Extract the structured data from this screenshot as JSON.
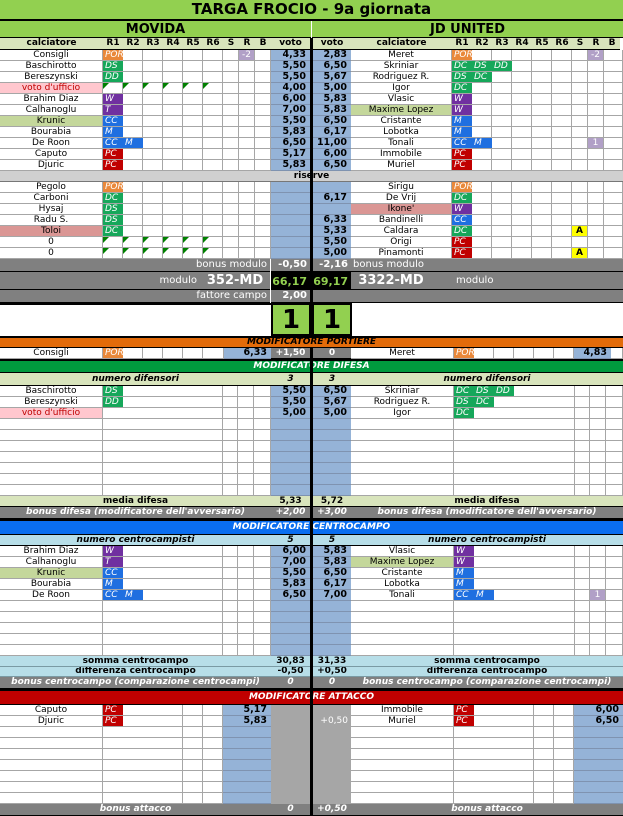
{
  "title": "TARGA FROCIO - 9a giornata",
  "headers": {
    "calciatore": "calciatore",
    "cols": [
      "R1",
      "R2",
      "R3",
      "R4",
      "R5",
      "R6",
      "S",
      "R",
      "B"
    ],
    "voto": "voto",
    "riserve": "riserve"
  },
  "labels": {
    "bonus_modulo": "bonus modulo",
    "modulo": "modulo",
    "fattore_campo": "fattore campo"
  },
  "role_colors": {
    "POR": "#e9883a",
    "DS": "#16a75a",
    "DD": "#16a75a",
    "DC": "#16a75a",
    "W": "#7030a0",
    "T": "#7030a0",
    "CC": "#1f6fe0",
    "M": "#1f6fe0",
    "PC": "#c00000"
  },
  "colors": {
    "voto": "#95b3d7",
    "title": "#92d050",
    "portiere": "#e26b0a",
    "difesa": "#009a3e",
    "centrocampo": "#0a6ef0",
    "attacco": "#c00000"
  },
  "home": {
    "team": "MOVIDA",
    "starters": [
      {
        "name": "Consigli",
        "roles": [
          "POR"
        ],
        "r": "-2",
        "voto": "4,33"
      },
      {
        "name": "Baschirotto",
        "roles": [
          "DS"
        ],
        "voto": "5,50"
      },
      {
        "name": "Bereszynski",
        "roles": [
          "DD"
        ],
        "voto": "5,50"
      },
      {
        "name": "voto d'ufficio",
        "roles": [],
        "flags": true,
        "style": "uff",
        "voto": "4,00"
      },
      {
        "name": "Brahim Diaz",
        "roles": [
          "W"
        ],
        "voto": "6,00"
      },
      {
        "name": "Calhanoglu",
        "roles": [
          "T"
        ],
        "voto": "7,00"
      },
      {
        "name": "Krunic",
        "roles": [
          "CC"
        ],
        "style": "sub",
        "voto": "5,50"
      },
      {
        "name": "Bourabia",
        "roles": [
          "M"
        ],
        "voto": "5,83"
      },
      {
        "name": "De Roon",
        "roles": [
          "CC",
          "M"
        ],
        "voto": "6,50"
      },
      {
        "name": "Caputo",
        "roles": [
          "PC"
        ],
        "voto": "5,17"
      },
      {
        "name": "Djuric",
        "roles": [
          "PC"
        ],
        "voto": "5,83"
      }
    ],
    "reserves": [
      {
        "name": "Pegolo",
        "roles": [
          "POR"
        ]
      },
      {
        "name": "Carboni",
        "roles": [
          "DC"
        ]
      },
      {
        "name": "Hysaj",
        "roles": [
          "DS"
        ]
      },
      {
        "name": "Radu S.",
        "roles": [
          "DS"
        ]
      },
      {
        "name": "Toloi",
        "roles": [
          "DC"
        ],
        "style": "out"
      },
      {
        "name": "0",
        "roles": [],
        "flags": true
      },
      {
        "name": "0",
        "roles": [],
        "flags": true
      }
    ],
    "bonus_modulo": "-0,50",
    "modulo": "352-MD",
    "total": "66,17",
    "fattore_campo": "2,00",
    "score": "1"
  },
  "away": {
    "team": "JD UNITED",
    "starters": [
      {
        "name": "Meret",
        "roles": [
          "POR"
        ],
        "r": "-2",
        "voto": "2,83"
      },
      {
        "name": "Skriniar",
        "roles": [
          "DC",
          "DS",
          "DD"
        ],
        "voto": "6,50"
      },
      {
        "name": "Rodriguez R.",
        "roles": [
          "DS",
          "DC"
        ],
        "voto": "5,67"
      },
      {
        "name": "Igor",
        "roles": [
          "DC"
        ],
        "voto": "5,00"
      },
      {
        "name": "Vlasic",
        "roles": [
          "W"
        ],
        "voto": "5,83"
      },
      {
        "name": "Maxime Lopez",
        "roles": [
          "W"
        ],
        "style": "sub",
        "voto": "5,83"
      },
      {
        "name": "Cristante",
        "roles": [
          "M"
        ],
        "voto": "6,50"
      },
      {
        "name": "Lobotka",
        "roles": [
          "M"
        ],
        "voto": "6,17"
      },
      {
        "name": "Tonali",
        "roles": [
          "CC",
          "M"
        ],
        "r": "1",
        "voto": "11,00"
      },
      {
        "name": "Immobile",
        "roles": [
          "PC"
        ],
        "voto": "6,00"
      },
      {
        "name": "Muriel",
        "roles": [
          "PC"
        ],
        "voto": "6,50"
      }
    ],
    "reserves": [
      {
        "name": "Sirigu",
        "roles": [
          "POR"
        ]
      },
      {
        "name": "De Vrij",
        "roles": [
          "DC"
        ],
        "voto": "6,17"
      },
      {
        "name": "Ikone'",
        "roles": [
          "W"
        ],
        "style": "out"
      },
      {
        "name": "Bandinelli",
        "roles": [
          "CC"
        ],
        "voto": "6,33"
      },
      {
        "name": "Caldara",
        "roles": [
          "DC"
        ],
        "s": "A",
        "voto": "5,33"
      },
      {
        "name": "Origi",
        "roles": [
          "PC"
        ],
        "voto": "5,50"
      },
      {
        "name": "Pinamonti",
        "roles": [
          "PC"
        ],
        "s": "A",
        "voto": "5,00"
      }
    ],
    "bonus_modulo": "-2,16",
    "modulo": "3322-MD",
    "total": "69,17",
    "score": "1"
  },
  "portiere": {
    "title": "MODIFICATORE PORTIERE",
    "home": {
      "name": "Consigli",
      "roles": [
        "POR"
      ],
      "voto": "6,33",
      "bonus": "+1,50"
    },
    "away": {
      "name": "Meret",
      "roles": [
        "POR"
      ],
      "voto": "4,83",
      "bonus": "0"
    }
  },
  "difesa": {
    "title": "MODIFICATORE DIFESA",
    "count_label": "numero difensori",
    "home_count": "3",
    "away_count": "3",
    "home": [
      {
        "name": "Baschirotto",
        "roles": [
          "DS"
        ],
        "voto": "5,50"
      },
      {
        "name": "Bereszynski",
        "roles": [
          "DD"
        ],
        "voto": "5,50"
      },
      {
        "name": "voto d'ufficio",
        "roles": [],
        "style": "uff",
        "voto": "5,00"
      }
    ],
    "away": [
      {
        "name": "Skriniar",
        "roles": [
          "DC",
          "DS",
          "DD"
        ],
        "voto": "6,50"
      },
      {
        "name": "Rodriguez R.",
        "roles": [
          "DS",
          "DC"
        ],
        "voto": "5,67"
      },
      {
        "name": "Igor",
        "roles": [
          "DC"
        ],
        "voto": "5,00"
      }
    ],
    "media_label": "media difesa",
    "home_media": "5,33",
    "away_media": "5,72",
    "bonus_label": "bonus difesa (modificatore dell'avversario)",
    "home_bonus": "+2,00",
    "away_bonus": "+3,00"
  },
  "centrocampo": {
    "title": "MODIFICATORE CENTROCAMPO",
    "count_label": "numero centrocampisti",
    "home_count": "5",
    "away_count": "5",
    "home": [
      {
        "name": "Brahim Diaz",
        "roles": [
          "W"
        ],
        "voto": "6,00"
      },
      {
        "name": "Calhanoglu",
        "roles": [
          "T"
        ],
        "voto": "7,00"
      },
      {
        "name": "Krunic",
        "roles": [
          "CC"
        ],
        "style": "sub",
        "voto": "5,50"
      },
      {
        "name": "Bourabia",
        "roles": [
          "M"
        ],
        "voto": "5,83"
      },
      {
        "name": "De Roon",
        "roles": [
          "CC",
          "M"
        ],
        "voto": "6,50"
      }
    ],
    "away": [
      {
        "name": "Vlasic",
        "roles": [
          "W"
        ],
        "voto": "5,83"
      },
      {
        "name": "Maxime Lopez",
        "roles": [
          "W"
        ],
        "style": "sub",
        "voto": "5,83"
      },
      {
        "name": "Cristante",
        "roles": [
          "M"
        ],
        "voto": "6,50"
      },
      {
        "name": "Lobotka",
        "roles": [
          "M"
        ],
        "voto": "6,17"
      },
      {
        "name": "Tonali",
        "roles": [
          "CC",
          "M"
        ],
        "r": "1",
        "voto": "7,00"
      }
    ],
    "somma_label": "somma centrocampo",
    "home_somma": "30,83",
    "away_somma": "31,33",
    "diff_label": "differenza centrocampo",
    "home_diff": "-0,50",
    "away_diff": "+0,50",
    "bonus_label": "bonus centrocampo (comparazione centrocampi)",
    "home_bonus": "0",
    "away_bonus": "0"
  },
  "attacco": {
    "title": "MODIFICATORE ATTACCO",
    "home": [
      {
        "name": "Caputo",
        "roles": [
          "PC"
        ],
        "voto": "5,17"
      },
      {
        "name": "Djuric",
        "roles": [
          "PC"
        ],
        "voto": "5,83"
      }
    ],
    "away": [
      {
        "name": "Immobile",
        "roles": [
          "PC"
        ],
        "voto": "6,00"
      },
      {
        "name": "Muriel",
        "roles": [
          "PC"
        ],
        "voto": "6,50",
        "bonus": "+0,50"
      }
    ],
    "bonus_label": "bonus attacco",
    "home_bonus": "0",
    "away_bonus": "+0,50"
  }
}
